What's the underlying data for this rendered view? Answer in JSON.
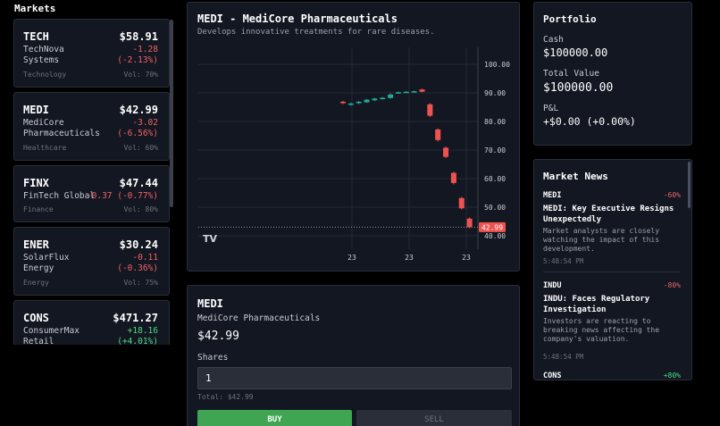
{
  "markets": {
    "title": "Markets",
    "items": [
      {
        "symbol": "TECH",
        "price": "$58.91",
        "name": "TechNova Systems",
        "change": "-1.28",
        "change_pct": "(-2.13%)",
        "sector": "Technology",
        "volatility": "Vol: 70%",
        "direction": "down"
      },
      {
        "symbol": "MEDI",
        "price": "$42.99",
        "name": "MediCore Pharmaceuticals",
        "change": "-3.02",
        "change_pct": "(-6.56%)",
        "sector": "Healthcare",
        "volatility": "Vol: 60%",
        "direction": "down"
      },
      {
        "symbol": "FINX",
        "price": "$47.44",
        "name": "FinTech Global",
        "change": "-0.37 (-0.77%)",
        "change_pct": "",
        "sector": "Finance",
        "volatility": "Vol: 80%",
        "direction": "down"
      },
      {
        "symbol": "ENER",
        "price": "$30.24",
        "name": "SolarFlux Energy",
        "change": "-0.11",
        "change_pct": "(-0.36%)",
        "sector": "Energy",
        "volatility": "Vol: 75%",
        "direction": "down"
      },
      {
        "symbol": "CONS",
        "price": "$471.27",
        "name": "ConsumerMax Retail",
        "change": "+18.16",
        "change_pct": "(+4.01%)",
        "sector": "",
        "volatility": "",
        "direction": "up"
      }
    ]
  },
  "chart": {
    "title": "MEDI - MediCore Pharmaceuticals",
    "description": "Develops innovative treatments for rare diseases.",
    "logo": "TV",
    "current_price_label": "42.99",
    "y_ticks": [
      "100.00",
      "90.00",
      "80.00",
      "70.00",
      "60.00",
      "50.00",
      "40.00"
    ],
    "x_ticks": [
      "23",
      "23",
      "23"
    ]
  },
  "chart_data": {
    "type": "candlestick",
    "ylim": [
      38,
      106
    ],
    "y_ticks": [
      100,
      90,
      80,
      70,
      60,
      50,
      40
    ],
    "current_price": 42.99,
    "candles": [
      {
        "open": 86.9,
        "close": 86.4,
        "high": 87.2,
        "low": 86.1
      },
      {
        "open": 85.8,
        "close": 86.3,
        "high": 86.6,
        "low": 85.5
      },
      {
        "open": 86.4,
        "close": 86.9,
        "high": 87.2,
        "low": 86.1
      },
      {
        "open": 86.7,
        "close": 87.6,
        "high": 87.9,
        "low": 86.5
      },
      {
        "open": 87.4,
        "close": 88.0,
        "high": 88.3,
        "low": 87.1
      },
      {
        "open": 87.8,
        "close": 88.3,
        "high": 88.5,
        "low": 87.6
      },
      {
        "open": 88.2,
        "close": 89.4,
        "high": 89.8,
        "low": 88.0
      },
      {
        "open": 89.9,
        "close": 90.2,
        "high": 90.5,
        "low": 89.7
      },
      {
        "open": 90.1,
        "close": 90.4,
        "high": 90.6,
        "low": 89.9
      },
      {
        "open": 90.2,
        "close": 90.6,
        "high": 90.8,
        "low": 90.0
      },
      {
        "open": 91.2,
        "close": 90.4,
        "high": 91.5,
        "low": 90.2
      },
      {
        "open": 86.0,
        "close": 82.0,
        "high": 86.4,
        "low": 81.6
      },
      {
        "open": 77.2,
        "close": 73.5,
        "high": 77.6,
        "low": 73.0
      },
      {
        "open": 70.8,
        "close": 67.6,
        "high": 71.2,
        "low": 67.2
      },
      {
        "open": 62.0,
        "close": 58.5,
        "high": 62.4,
        "low": 58.0
      },
      {
        "open": 53.2,
        "close": 49.6,
        "high": 53.6,
        "low": 49.2
      },
      {
        "open": 46.0,
        "close": 42.99,
        "high": 46.4,
        "low": 42.6
      }
    ],
    "colors": {
      "up": "#26a69a",
      "down": "#ef5350",
      "price_label_bg": "#ef5350"
    }
  },
  "trade": {
    "symbol": "MEDI",
    "name": "MediCore Pharmaceuticals",
    "price": "$42.99",
    "shares_label": "Shares",
    "shares_value": "1",
    "total": "Total: $42.99",
    "buy_label": "BUY",
    "sell_label": "SELL"
  },
  "portfolio": {
    "title": "Portfolio",
    "cash_label": "Cash",
    "cash_value": "$100000.00",
    "total_label": "Total Value",
    "total_value": "$100000.00",
    "pnl_label": "P&L",
    "pnl_value": "+$0.00 (+0.00%)"
  },
  "news": {
    "title": "Market News",
    "items": [
      {
        "symbol": "MEDI",
        "impact": "-60%",
        "headline": "MEDI: Key Executive Resigns Unexpectedly",
        "body": "Market analysts are closely watching the impact of this development.",
        "time": "5:48:54 PM",
        "direction": "down"
      },
      {
        "symbol": "INDU",
        "impact": "-80%",
        "headline": "INDU: Faces Regulatory Investigation",
        "body": "Investors are reacting to breaking news affecting the company's valuation.",
        "time": "5:48:54 PM",
        "direction": "down"
      },
      {
        "symbol": "CONS",
        "impact": "+80%",
        "headline": "",
        "body": "",
        "time": "",
        "direction": "up"
      }
    ]
  }
}
